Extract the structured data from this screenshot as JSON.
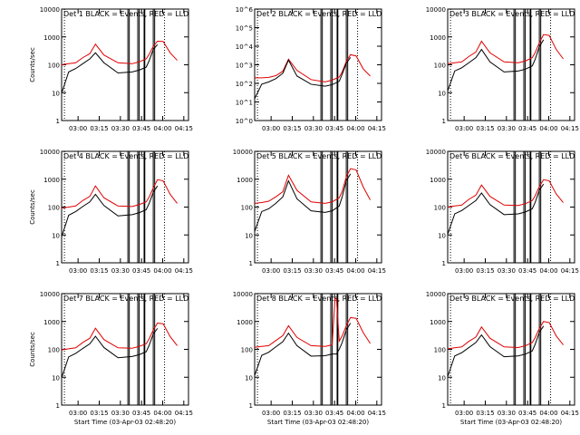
{
  "figure": {
    "xtick_labels": [
      "03:00",
      "03:15",
      "03:30",
      "03:45",
      "04:00",
      "04:15"
    ],
    "xlabel": "Start Time (03-Apr-03 02:48:20)",
    "ylabel": "Counts/sec",
    "colors": {
      "events": "#000000",
      "lld": "#e00000",
      "axis": "#000000",
      "background": "#ffffff"
    }
  },
  "chart_data": [
    {
      "type": "line",
      "title": "Det 1  BLACK = Events, RED = LLD",
      "ytick_labels": [
        "1",
        "10",
        "100",
        "1000",
        "10000"
      ],
      "ylim": [
        1,
        12000
      ],
      "xlabel": "",
      "ylabel": "Counts/sec",
      "x_minutes": [
        0,
        5,
        10,
        15,
        20,
        24,
        30,
        40,
        50,
        55,
        60,
        62,
        65,
        68,
        72,
        77,
        82
      ],
      "series": [
        {
          "name": "LLD",
          "color": "#e00000",
          "values": [
            110,
            120,
            130,
            200,
            280,
            620,
            250,
            130,
            120,
            140,
            180,
            260,
            520,
            800,
            780,
            300,
            160
          ]
        },
        {
          "name": "Events",
          "color": "#000000",
          "values": [
            10,
            60,
            80,
            120,
            180,
            300,
            130,
            55,
            60,
            70,
            90,
            150,
            400,
            600
          ]
        }
      ],
      "gaps": [
        [
          47,
          48
        ],
        [
          54,
          55
        ],
        [
          58.5,
          59
        ],
        [
          65,
          66
        ]
      ]
    },
    {
      "type": "line",
      "title": "Det 2  BLACK = Events, RED = LLD",
      "ytick_labels": [
        "10^0",
        "10^1",
        "10^2",
        "10^3",
        "10^4",
        "10^5",
        "10^6"
      ],
      "ylim": [
        1,
        1000000
      ],
      "xlabel": "",
      "ylabel": "",
      "x_minutes": [
        0,
        5,
        10,
        15,
        20,
        24,
        30,
        40,
        50,
        55,
        60,
        62,
        65,
        68,
        72,
        77,
        82
      ],
      "series": [
        {
          "name": "LLD",
          "color": "#e00000",
          "values": [
            200,
            200,
            210,
            260,
            450,
            2000,
            500,
            160,
            120,
            150,
            220,
            400,
            1500,
            3500,
            3000,
            600,
            250
          ]
        },
        {
          "name": "Events",
          "color": "#000000",
          "values": [
            15,
            90,
            120,
            180,
            350,
            1800,
            250,
            90,
            70,
            85,
            130,
            300,
            1200,
            2500
          ]
        }
      ],
      "gaps": [
        [
          47,
          48
        ],
        [
          54,
          55
        ],
        [
          58.5,
          59
        ],
        [
          65,
          66
        ]
      ]
    },
    {
      "type": "line",
      "title": "Det 3  BLACK = Events, RED = LLD",
      "ytick_labels": [
        "1",
        "10",
        "100",
        "1000",
        "10000"
      ],
      "ylim": [
        1,
        12000
      ],
      "xlabel": "",
      "ylabel": "",
      "x_minutes": [
        0,
        5,
        10,
        15,
        20,
        24,
        30,
        40,
        50,
        55,
        60,
        62,
        65,
        68,
        72,
        77,
        82
      ],
      "series": [
        {
          "name": "LLD",
          "color": "#e00000",
          "values": [
            120,
            130,
            140,
            220,
            320,
            800,
            300,
            140,
            130,
            150,
            200,
            300,
            700,
            1400,
            1300,
            400,
            180
          ]
        },
        {
          "name": "Events",
          "color": "#000000",
          "values": [
            12,
            65,
            85,
            130,
            200,
            400,
            140,
            60,
            65,
            75,
            100,
            170,
            500,
            900
          ]
        }
      ],
      "gaps": [
        [
          47,
          48
        ],
        [
          54,
          55
        ],
        [
          58.5,
          59
        ],
        [
          65,
          66
        ]
      ]
    },
    {
      "type": "line",
      "title": "Det 4  BLACK = Events, RED = LLD",
      "ytick_labels": [
        "1",
        "10",
        "100",
        "1000",
        "10000"
      ],
      "ylim": [
        1,
        12000
      ],
      "xlabel": "",
      "ylabel": "Counts/sec",
      "x_minutes": [
        0,
        5,
        10,
        15,
        20,
        24,
        30,
        40,
        50,
        55,
        60,
        62,
        65,
        68,
        72,
        77,
        82
      ],
      "series": [
        {
          "name": "LLD",
          "color": "#e00000",
          "values": [
            100,
            110,
            120,
            190,
            270,
            650,
            240,
            120,
            115,
            135,
            170,
            250,
            550,
            1100,
            1000,
            320,
            150
          ]
        },
        {
          "name": "Events",
          "color": "#000000",
          "values": [
            9,
            55,
            75,
            115,
            170,
            320,
            125,
            52,
            58,
            68,
            88,
            145,
            380,
            650
          ]
        }
      ],
      "gaps": [
        [
          47,
          48
        ],
        [
          54,
          55
        ],
        [
          58.5,
          59
        ],
        [
          65,
          66
        ]
      ]
    },
    {
      "type": "line",
      "title": "Det 5  BLACK = Events, RED = LLD",
      "ytick_labels": [
        "1",
        "10",
        "100",
        "1000",
        "10000"
      ],
      "ylim": [
        1,
        12000
      ],
      "xlabel": "",
      "ylabel": "",
      "x_minutes": [
        0,
        5,
        10,
        15,
        20,
        24,
        30,
        40,
        50,
        55,
        60,
        62,
        65,
        68,
        72,
        77,
        82
      ],
      "series": [
        {
          "name": "LLD",
          "color": "#e00000",
          "values": [
            150,
            160,
            180,
            260,
            400,
            1600,
            450,
            170,
            150,
            170,
            240,
            400,
            1400,
            2800,
            2500,
            600,
            200
          ]
        },
        {
          "name": "Events",
          "color": "#000000",
          "values": [
            14,
            75,
            95,
            150,
            260,
            1000,
            220,
            80,
            70,
            80,
            120,
            250,
            1000,
            1800
          ]
        }
      ],
      "gaps": [
        [
          47,
          48
        ],
        [
          54,
          55
        ],
        [
          58.5,
          59
        ],
        [
          65,
          66
        ]
      ]
    },
    {
      "type": "line",
      "title": "Det 6  BLACK = Events, RED = LLD",
      "ytick_labels": [
        "1",
        "10",
        "100",
        "1000",
        "10000"
      ],
      "ylim": [
        1,
        12000
      ],
      "xlabel": "",
      "ylabel": "",
      "x_minutes": [
        0,
        5,
        10,
        15,
        20,
        24,
        30,
        40,
        50,
        55,
        60,
        62,
        65,
        68,
        72,
        77,
        82
      ],
      "series": [
        {
          "name": "LLD",
          "color": "#e00000",
          "values": [
            110,
            120,
            130,
            210,
            300,
            700,
            270,
            130,
            125,
            145,
            190,
            280,
            620,
            1100,
            1000,
            330,
            160
          ]
        },
        {
          "name": "Events",
          "color": "#000000",
          "values": [
            11,
            62,
            82,
            125,
            190,
            360,
            135,
            58,
            62,
            72,
            95,
            160,
            450,
            760
          ]
        }
      ],
      "gaps": [
        [
          47,
          48
        ],
        [
          54,
          55
        ],
        [
          58.5,
          59
        ],
        [
          65,
          66
        ]
      ]
    },
    {
      "type": "line",
      "title": "Det 7  BLACK = Events, RED = LLD",
      "ytick_labels": [
        "1",
        "10",
        "100",
        "1000",
        "10000"
      ],
      "ylim": [
        1,
        12000
      ],
      "xlabel": "Start Time (03-Apr-03 02:48:20)",
      "ylabel": "Counts/sec",
      "x_minutes": [
        0,
        5,
        10,
        15,
        20,
        24,
        30,
        40,
        50,
        55,
        60,
        62,
        65,
        68,
        72,
        77,
        82
      ],
      "series": [
        {
          "name": "LLD",
          "color": "#e00000",
          "values": [
            105,
            115,
            125,
            195,
            280,
            650,
            250,
            125,
            120,
            140,
            175,
            260,
            560,
            1000,
            950,
            320,
            150
          ]
        },
        {
          "name": "Events",
          "color": "#000000",
          "values": [
            10,
            58,
            78,
            118,
            175,
            330,
            128,
            54,
            60,
            70,
            90,
            150,
            400,
            640
          ]
        }
      ],
      "gaps": [
        [
          47,
          48
        ],
        [
          54,
          55
        ],
        [
          58.5,
          59
        ],
        [
          65,
          66
        ]
      ]
    },
    {
      "type": "line",
      "title": "Det 8  BLACK = Events, RED = LLD",
      "ytick_labels": [
        "1",
        "10",
        "100",
        "1000",
        "10000"
      ],
      "ylim": [
        1,
        12000
      ],
      "xlabel": "Start Time (03-Apr-03 02:48:20)",
      "ylabel": "",
      "x_minutes": [
        0,
        5,
        10,
        15,
        20,
        24,
        30,
        40,
        50,
        55,
        57,
        58,
        60,
        62,
        65,
        68,
        72,
        77,
        82
      ],
      "series": [
        {
          "name": "LLD",
          "color": "#e00000",
          "values": [
            130,
            140,
            150,
            230,
            350,
            800,
            300,
            150,
            140,
            160,
            8000,
            8000,
            220,
            330,
            800,
            1600,
            1500,
            450,
            180
          ]
        },
        {
          "name": "Events",
          "color": "#000000",
          "values": [
            12,
            66,
            86,
            135,
            210,
            430,
            150,
            62,
            64,
            74,
            74,
            74,
            110,
            190,
            560,
            1000
          ]
        }
      ],
      "gaps": [
        [
          47,
          48
        ],
        [
          54,
          55
        ],
        [
          58.5,
          59
        ],
        [
          65,
          66
        ]
      ]
    },
    {
      "type": "line",
      "title": "Det 9  BLACK = Events, RED = LLD",
      "ytick_labels": [
        "1",
        "10",
        "100",
        "1000",
        "10000"
      ],
      "ylim": [
        1,
        12000
      ],
      "xlabel": "Start Time (03-Apr-03 02:48:20)",
      "ylabel": "",
      "x_minutes": [
        0,
        5,
        10,
        15,
        20,
        24,
        30,
        40,
        50,
        55,
        60,
        62,
        65,
        68,
        72,
        77,
        82
      ],
      "series": [
        {
          "name": "LLD",
          "color": "#e00000",
          "values": [
            115,
            125,
            135,
            215,
            310,
            720,
            280,
            135,
            128,
            148,
            195,
            290,
            640,
            1150,
            1050,
            340,
            160
          ]
        },
        {
          "name": "Events",
          "color": "#000000",
          "values": [
            11,
            63,
            83,
            127,
            195,
            370,
            138,
            59,
            63,
            73,
            96,
            165,
            460,
            780
          ]
        }
      ],
      "gaps": [
        [
          47,
          48
        ],
        [
          54,
          55
        ],
        [
          58.5,
          59
        ],
        [
          65,
          66
        ]
      ]
    }
  ]
}
